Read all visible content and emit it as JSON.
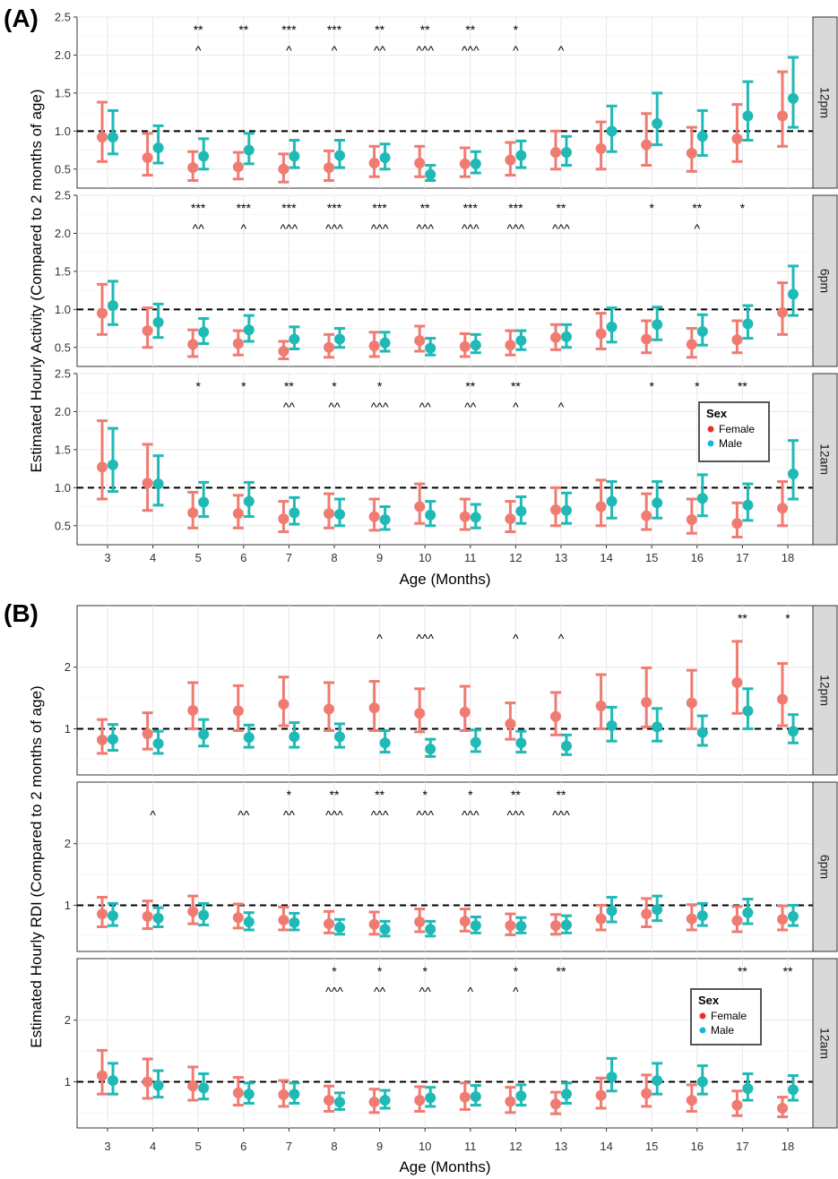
{
  "colors": {
    "female": "#F07B72",
    "male": "#1FBAB6",
    "legend_female": "#E8302A",
    "legend_male": "#18B5E0",
    "panel_bg": "#FFFFFF",
    "grid": "#E8E8E8",
    "strip_bg": "#D9D9D9",
    "reference_line": "#000000"
  },
  "chart_data": [
    {
      "id": "A",
      "label": "(A)",
      "type": "errorbar",
      "ylabel": "Estimated Hourly Activity (Compared to 2 months of age)",
      "xlabel": "Age (Months)",
      "x_ticks": [
        3,
        4,
        5,
        6,
        7,
        8,
        9,
        10,
        11,
        12,
        13,
        14,
        15,
        16,
        17,
        18
      ],
      "ylim": [
        0.25,
        2.5
      ],
      "y_ticks": [
        0.5,
        1.0,
        1.5,
        2.0,
        2.5
      ],
      "y_tick_labels": [
        "0.5",
        "1.0",
        "1.5",
        "2.0",
        "2.5"
      ],
      "reference": 1.0,
      "legend": {
        "title": "Sex",
        "entries": [
          "Female",
          "Male"
        ],
        "facet": "12am"
      },
      "facets": [
        {
          "strip": "12pm",
          "female": {
            "est": [
              0.92,
              0.65,
              0.52,
              0.53,
              0.5,
              0.52,
              0.58,
              0.58,
              0.57,
              0.62,
              0.72,
              0.77,
              0.82,
              0.71,
              0.9,
              1.2
            ],
            "lo": [
              0.6,
              0.42,
              0.35,
              0.37,
              0.33,
              0.35,
              0.4,
              0.4,
              0.4,
              0.42,
              0.5,
              0.5,
              0.55,
              0.47,
              0.6,
              0.8
            ],
            "hi": [
              1.38,
              0.97,
              0.73,
              0.72,
              0.7,
              0.74,
              0.8,
              0.8,
              0.78,
              0.85,
              1.0,
              1.12,
              1.23,
              1.05,
              1.35,
              1.78
            ]
          },
          "male": {
            "est": [
              0.92,
              0.78,
              0.67,
              0.75,
              0.67,
              0.68,
              0.65,
              0.43,
              0.57,
              0.68,
              0.72,
              1.0,
              1.1,
              0.93,
              1.2,
              1.43
            ],
            "lo": [
              0.7,
              0.58,
              0.5,
              0.57,
              0.52,
              0.52,
              0.5,
              0.35,
              0.45,
              0.52,
              0.55,
              0.73,
              0.82,
              0.68,
              0.88,
              1.05
            ],
            "hi": [
              1.27,
              1.07,
              0.9,
              0.97,
              0.88,
              0.88,
              0.83,
              0.55,
              0.73,
              0.87,
              0.93,
              1.33,
              1.5,
              1.27,
              1.65,
              1.97
            ]
          },
          "stars": [
            "",
            "",
            "**",
            "**",
            "***",
            "***",
            "**",
            "**",
            "**",
            "*",
            "",
            "",
            "",
            "",
            "",
            ""
          ],
          "carets": [
            "",
            "",
            "^",
            "",
            "^",
            "^",
            "^^",
            "^^^",
            "^^^",
            "^",
            "^",
            "",
            "",
            "",
            "",
            ""
          ]
        },
        {
          "strip": "6pm",
          "female": {
            "est": [
              0.95,
              0.72,
              0.54,
              0.55,
              0.45,
              0.5,
              0.52,
              0.59,
              0.51,
              0.53,
              0.63,
              0.68,
              0.61,
              0.54,
              0.6,
              0.96
            ],
            "lo": [
              0.67,
              0.5,
              0.38,
              0.4,
              0.35,
              0.37,
              0.38,
              0.45,
              0.38,
              0.4,
              0.47,
              0.48,
              0.43,
              0.37,
              0.43,
              0.67
            ],
            "hi": [
              1.33,
              1.02,
              0.73,
              0.72,
              0.58,
              0.67,
              0.7,
              0.78,
              0.68,
              0.72,
              0.8,
              0.95,
              0.85,
              0.75,
              0.85,
              1.35
            ]
          },
          "male": {
            "est": [
              1.05,
              0.83,
              0.7,
              0.73,
              0.61,
              0.61,
              0.56,
              0.49,
              0.53,
              0.59,
              0.64,
              0.77,
              0.8,
              0.71,
              0.81,
              1.2
            ],
            "lo": [
              0.8,
              0.63,
              0.55,
              0.58,
              0.48,
              0.5,
              0.45,
              0.4,
              0.43,
              0.47,
              0.5,
              0.57,
              0.6,
              0.53,
              0.62,
              0.92
            ],
            "hi": [
              1.37,
              1.07,
              0.88,
              0.92,
              0.77,
              0.75,
              0.7,
              0.62,
              0.67,
              0.72,
              0.8,
              1.02,
              1.03,
              0.93,
              1.05,
              1.57
            ]
          },
          "stars": [
            "",
            "",
            "***",
            "***",
            "***",
            "***",
            "***",
            "**",
            "***",
            "***",
            "**",
            "",
            "*",
            "**",
            "*",
            ""
          ],
          "carets": [
            "",
            "",
            "^^",
            "^",
            "^^^",
            "^^^",
            "^^^",
            "^^^",
            "^^^",
            "^^^",
            "^^^",
            "",
            "",
            "^",
            "",
            ""
          ]
        },
        {
          "strip": "12am",
          "female": {
            "est": [
              1.27,
              1.06,
              0.67,
              0.66,
              0.59,
              0.66,
              0.62,
              0.75,
              0.62,
              0.59,
              0.71,
              0.75,
              0.63,
              0.58,
              0.53,
              0.73
            ],
            "lo": [
              0.85,
              0.7,
              0.47,
              0.47,
              0.42,
              0.47,
              0.44,
              0.53,
              0.45,
              0.42,
              0.5,
              0.5,
              0.45,
              0.4,
              0.35,
              0.5
            ],
            "hi": [
              1.88,
              1.57,
              0.94,
              0.9,
              0.82,
              0.92,
              0.85,
              1.05,
              0.85,
              0.82,
              1.0,
              1.1,
              0.92,
              0.85,
              0.8,
              1.08
            ]
          },
          "male": {
            "est": [
              1.3,
              1.05,
              0.81,
              0.82,
              0.67,
              0.65,
              0.58,
              0.64,
              0.61,
              0.69,
              0.7,
              0.82,
              0.8,
              0.86,
              0.77,
              1.18
            ],
            "lo": [
              0.95,
              0.77,
              0.62,
              0.62,
              0.52,
              0.5,
              0.45,
              0.5,
              0.47,
              0.53,
              0.53,
              0.6,
              0.6,
              0.63,
              0.57,
              0.85
            ],
            "hi": [
              1.78,
              1.42,
              1.07,
              1.07,
              0.87,
              0.85,
              0.75,
              0.82,
              0.78,
              0.88,
              0.93,
              1.08,
              1.08,
              1.17,
              1.05,
              1.62
            ]
          },
          "stars": [
            "",
            "",
            "*",
            "*",
            "**",
            "*",
            "*",
            "",
            "**",
            "**",
            "",
            "",
            "*",
            "*",
            "**",
            ""
          ],
          "carets": [
            "",
            "",
            "",
            "",
            "^^",
            "^^",
            "^^^",
            "^^",
            "^^",
            "^",
            "^",
            "",
            "",
            "",
            "",
            ""
          ]
        }
      ]
    },
    {
      "id": "B",
      "label": "(B)",
      "type": "errorbar",
      "ylabel": "Estimated Hourly RDI (Compared to 2 months of age)",
      "xlabel": "Age (Months)",
      "x_ticks": [
        3,
        4,
        5,
        6,
        7,
        8,
        9,
        10,
        11,
        12,
        13,
        14,
        15,
        16,
        17,
        18
      ],
      "ylim": [
        0.25,
        3.0
      ],
      "y_ticks": [
        1,
        2
      ],
      "y_tick_labels": [
        "1",
        "2"
      ],
      "reference": 1.0,
      "legend": {
        "title": "Sex",
        "entries": [
          "Female",
          "Male"
        ],
        "facet": "12am"
      },
      "facets": [
        {
          "strip": "12pm",
          "female": {
            "est": [
              0.82,
              0.92,
              1.3,
              1.29,
              1.4,
              1.32,
              1.34,
              1.25,
              1.27,
              1.08,
              1.2,
              1.37,
              1.43,
              1.42,
              1.75,
              1.48
            ],
            "lo": [
              0.6,
              0.67,
              1.0,
              0.97,
              1.05,
              0.97,
              0.97,
              0.95,
              0.97,
              0.83,
              0.9,
              1.0,
              1.03,
              1.0,
              1.25,
              1.05
            ],
            "hi": [
              1.15,
              1.26,
              1.75,
              1.7,
              1.84,
              1.75,
              1.77,
              1.65,
              1.69,
              1.42,
              1.59,
              1.88,
              1.99,
              1.95,
              2.42,
              2.06
            ]
          },
          "male": {
            "est": [
              0.83,
              0.76,
              0.91,
              0.86,
              0.87,
              0.87,
              0.77,
              0.67,
              0.78,
              0.77,
              0.72,
              1.05,
              1.03,
              0.94,
              1.29,
              0.96
            ],
            "lo": [
              0.65,
              0.6,
              0.72,
              0.7,
              0.7,
              0.7,
              0.62,
              0.55,
              0.63,
              0.62,
              0.58,
              0.8,
              0.8,
              0.73,
              1.0,
              0.77
            ],
            "hi": [
              1.07,
              0.96,
              1.15,
              1.06,
              1.1,
              1.08,
              0.97,
              0.83,
              0.98,
              0.96,
              0.9,
              1.35,
              1.33,
              1.21,
              1.65,
              1.23
            ]
          },
          "stars": [
            "",
            "",
            "",
            "",
            "",
            "",
            "",
            "",
            "",
            "",
            "",
            "",
            "",
            "",
            "**",
            "*"
          ],
          "carets": [
            "",
            "",
            "",
            "",
            "",
            "",
            "^",
            "^^^",
            "",
            "^",
            "^",
            "",
            "",
            "",
            "",
            ""
          ]
        },
        {
          "strip": "6pm",
          "female": {
            "est": [
              0.86,
              0.82,
              0.9,
              0.8,
              0.76,
              0.7,
              0.69,
              0.73,
              0.74,
              0.67,
              0.67,
              0.78,
              0.86,
              0.78,
              0.75,
              0.77
            ],
            "lo": [
              0.65,
              0.62,
              0.7,
              0.63,
              0.6,
              0.55,
              0.53,
              0.57,
              0.58,
              0.52,
              0.53,
              0.6,
              0.65,
              0.6,
              0.57,
              0.6
            ],
            "hi": [
              1.13,
              1.07,
              1.15,
              1.02,
              0.97,
              0.9,
              0.89,
              0.94,
              0.94,
              0.86,
              0.85,
              1.0,
              1.11,
              1.01,
              0.98,
              0.99
            ]
          },
          "male": {
            "est": [
              0.83,
              0.79,
              0.84,
              0.73,
              0.72,
              0.64,
              0.61,
              0.61,
              0.67,
              0.66,
              0.68,
              0.91,
              0.93,
              0.83,
              0.88,
              0.82
            ],
            "lo": [
              0.67,
              0.65,
              0.68,
              0.6,
              0.6,
              0.53,
              0.5,
              0.5,
              0.55,
              0.55,
              0.55,
              0.73,
              0.75,
              0.67,
              0.7,
              0.67
            ],
            "hi": [
              1.03,
              0.96,
              1.03,
              0.88,
              0.87,
              0.77,
              0.74,
              0.74,
              0.81,
              0.8,
              0.83,
              1.13,
              1.15,
              1.03,
              1.1,
              1.0
            ]
          },
          "stars": [
            "",
            "",
            "",
            "",
            "*",
            "**",
            "**",
            "*",
            "*",
            "**",
            "**",
            "",
            "",
            "",
            "",
            ""
          ],
          "carets": [
            "",
            "^",
            "",
            "^^",
            "^^",
            "^^^",
            "^^^",
            "^^^",
            "^^^",
            "^^^",
            "^^^",
            "",
            "",
            "",
            "",
            ""
          ]
        },
        {
          "strip": "12am",
          "female": {
            "est": [
              1.1,
              1.0,
              0.93,
              0.82,
              0.79,
              0.7,
              0.67,
              0.7,
              0.75,
              0.68,
              0.64,
              0.78,
              0.81,
              0.7,
              0.62,
              0.57
            ],
            "lo": [
              0.8,
              0.73,
              0.7,
              0.62,
              0.6,
              0.52,
              0.5,
              0.52,
              0.55,
              0.5,
              0.48,
              0.57,
              0.6,
              0.52,
              0.45,
              0.43
            ],
            "hi": [
              1.51,
              1.37,
              1.24,
              1.07,
              1.02,
              0.93,
              0.88,
              0.92,
              0.98,
              0.91,
              0.83,
              1.06,
              1.11,
              0.95,
              0.85,
              0.75
            ]
          },
          "male": {
            "est": [
              1.02,
              0.94,
              0.9,
              0.8,
              0.8,
              0.67,
              0.7,
              0.74,
              0.76,
              0.77,
              0.8,
              1.08,
              1.02,
              1.0,
              0.89,
              0.87
            ],
            "lo": [
              0.8,
              0.75,
              0.72,
              0.65,
              0.65,
              0.55,
              0.57,
              0.6,
              0.62,
              0.62,
              0.65,
              0.85,
              0.8,
              0.8,
              0.7,
              0.7
            ],
            "hi": [
              1.3,
              1.18,
              1.13,
              0.98,
              0.98,
              0.82,
              0.86,
              0.91,
              0.94,
              0.95,
              0.98,
              1.38,
              1.3,
              1.26,
              1.13,
              1.1
            ]
          },
          "stars": [
            "",
            "",
            "",
            "",
            "",
            "*",
            "*",
            "*",
            "",
            "*",
            "**",
            "",
            "",
            "",
            "**",
            "**"
          ],
          "carets": [
            "",
            "",
            "",
            "",
            "",
            "^^^",
            "^^",
            "^^",
            "^",
            "^",
            "",
            "",
            "",
            "",
            "",
            ""
          ]
        }
      ]
    }
  ]
}
